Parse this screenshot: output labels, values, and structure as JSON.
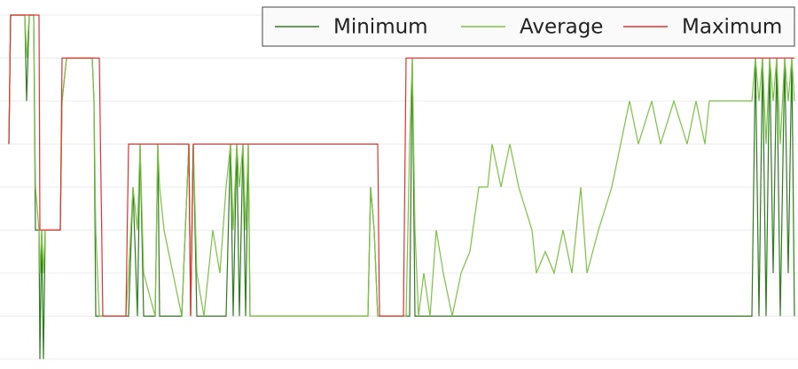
{
  "chart_data": {
    "type": "line",
    "x": [
      10,
      12,
      28,
      30,
      33,
      38,
      40,
      44,
      45,
      47,
      49,
      51,
      68,
      70,
      75,
      104,
      106,
      108,
      112,
      116,
      142,
      145,
      150,
      155,
      158,
      162,
      175,
      178,
      180,
      185,
      195,
      205,
      213,
      215,
      218,
      222,
      230,
      240,
      248,
      255,
      260,
      263,
      267,
      270,
      274,
      277,
      280,
      282,
      300,
      415,
      418,
      422,
      426,
      428,
      455,
      458,
      462,
      465,
      468,
      472,
      478,
      485,
      492,
      500,
      510,
      520,
      530,
      540,
      550,
      555,
      565,
      575,
      585,
      600,
      605,
      615,
      625,
      635,
      645,
      655,
      662,
      675,
      690,
      700,
      710,
      720,
      735,
      745,
      760,
      775,
      785,
      795,
      800,
      848,
      852,
      856,
      860,
      864,
      868,
      872,
      876,
      880,
      885,
      889,
      893,
      896
    ],
    "series": [
      {
        "name": "Minimum",
        "color": "#2f7d1f",
        "values": [
          5,
          8,
          8,
          6,
          8,
          8,
          3,
          3,
          0,
          3,
          0,
          3,
          3,
          6,
          7,
          7,
          6,
          1,
          1,
          1,
          1,
          1,
          4,
          1,
          5,
          1,
          1,
          5,
          1,
          1,
          1,
          1,
          5,
          1,
          5,
          1,
          1,
          1,
          1,
          1,
          5,
          1,
          5,
          1,
          5,
          1,
          5,
          1,
          1,
          1,
          4,
          3,
          1,
          1,
          1,
          1,
          1,
          7,
          1,
          1,
          1,
          1,
          1,
          1,
          1,
          1,
          1,
          1,
          1,
          1,
          1,
          1,
          1,
          1,
          1,
          1,
          1,
          1,
          1,
          1,
          1,
          1,
          1,
          1,
          1,
          1,
          1,
          1,
          1,
          1,
          1,
          1,
          1,
          1,
          7,
          1,
          7,
          1,
          7,
          2,
          7,
          1,
          7,
          2,
          7,
          1
        ]
      },
      {
        "name": "Average",
        "color": "#7cc243",
        "values": [
          5,
          8,
          8,
          7,
          8,
          8,
          4,
          3,
          2,
          3,
          2,
          3,
          3,
          6,
          7,
          7,
          6,
          3,
          1,
          1,
          1,
          2,
          4,
          3,
          5,
          2,
          1,
          5,
          4,
          3,
          2,
          1,
          5,
          1,
          5,
          2,
          1,
          3,
          2,
          4,
          5,
          3,
          5,
          4,
          5,
          3,
          5,
          1,
          1,
          1,
          4,
          3,
          1,
          1,
          1,
          1,
          5,
          7,
          3,
          1,
          2,
          1,
          3,
          2,
          1,
          2,
          2.5,
          4,
          4,
          5,
          4,
          5,
          4,
          3,
          2,
          2.5,
          2,
          3,
          2,
          4,
          2,
          3,
          4,
          5,
          6,
          5,
          6,
          5,
          6,
          5,
          6,
          5,
          6,
          6,
          7,
          6,
          7,
          5,
          7,
          6,
          7,
          5,
          7,
          6,
          7,
          6
        ]
      },
      {
        "name": "Maximum",
        "color": "#e63232",
        "values": [
          5,
          8,
          8,
          8,
          8,
          8,
          8,
          8,
          3,
          3,
          3,
          3,
          3,
          7,
          7,
          7,
          7,
          7,
          7,
          1,
          1,
          5,
          5,
          5,
          5,
          5,
          5,
          5,
          5,
          5,
          5,
          5,
          5,
          1,
          5,
          5,
          5,
          5,
          5,
          5,
          5,
          5,
          5,
          5,
          5,
          5,
          5,
          5,
          5,
          5,
          5,
          5,
          5,
          1,
          1,
          7,
          7,
          7,
          7,
          7,
          7,
          7,
          7,
          7,
          7,
          7,
          7,
          7,
          7,
          7,
          7,
          7,
          7,
          7,
          7,
          7,
          7,
          7,
          7,
          7,
          7,
          7,
          7,
          7,
          7,
          7,
          7,
          7,
          7,
          7,
          7,
          7,
          7,
          7,
          7,
          7,
          7,
          7,
          7,
          7,
          7,
          7,
          7,
          7,
          7,
          7
        ]
      }
    ],
    "xlim": [
      0,
      900
    ],
    "ylim": [
      -0.23,
      8.35
    ],
    "yticks": [
      0,
      1,
      2,
      3,
      4,
      5,
      6,
      7,
      8
    ],
    "grid": true
  }
}
